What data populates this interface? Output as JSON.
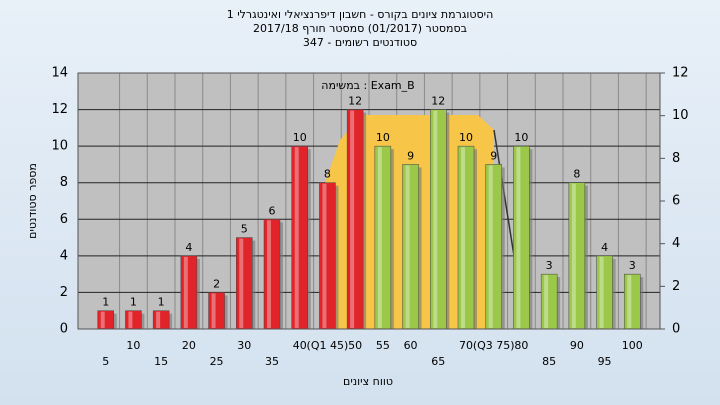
{
  "chart_data": {
    "type": "bar",
    "title": "היסטוגרמת ציונים בקורס - חשבון דיפרנציאלי ואינטגרלי 1",
    "subtitle": "בסמסטר  (01/2017)  סמסטר חורף 2017/18",
    "subtitle2": "סטודנטים רשומים - 347",
    "annotation": "במשימה : Exam_B",
    "x_label": "טווח ציונים",
    "y_label": "מספר סטודנטים",
    "categories": [
      "5",
      "10",
      "15",
      "20",
      "25",
      "30",
      "35",
      "40",
      "(Q1 45)",
      "50",
      "55",
      "60",
      "65",
      "70",
      "(Q3 75)",
      "80",
      "85",
      "90",
      "95",
      "100"
    ],
    "values": [
      1,
      1,
      1,
      4,
      2,
      5,
      6,
      10,
      8,
      12,
      10,
      9,
      12,
      10,
      9,
      10,
      3,
      8,
      4,
      3
    ],
    "colors": [
      "#e0242a",
      "#e0242a",
      "#e0242a",
      "#e0242a",
      "#e0242a",
      "#e0242a",
      "#e0242a",
      "#e0242a",
      "#e0242a",
      "#e0242a",
      "#9cc84a",
      "#9cc84a",
      "#9cc84a",
      "#9cc84a",
      "#9cc84a",
      "#9cc84a",
      "#9cc84a",
      "#9cc84a",
      "#9cc84a",
      "#9cc84a"
    ],
    "ylim": [
      0,
      14
    ],
    "yticks": [
      0,
      2,
      4,
      6,
      8,
      10,
      12,
      14
    ],
    "y2lim": [
      0,
      12
    ],
    "y2ticks": [
      0,
      2,
      4,
      6,
      8,
      10,
      12
    ],
    "grid": true
  }
}
